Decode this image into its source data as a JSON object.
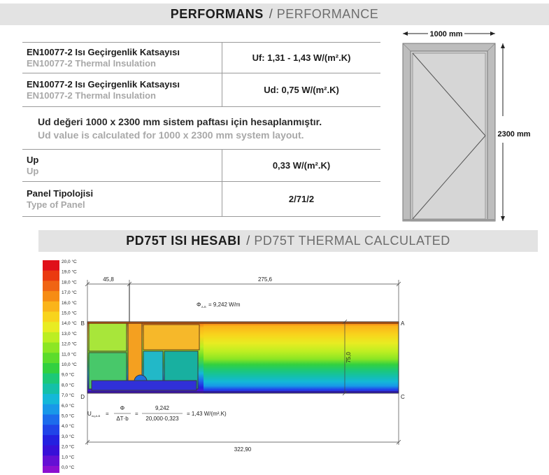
{
  "performance_header": {
    "tr": "PERFORMANS",
    "sep": "/",
    "en": "PERFORMANCE"
  },
  "spec_rows": [
    {
      "label_tr": "EN10077-2 Isı Geçirgenlik Katsayısı",
      "label_en": "EN10077-2 Thermal Insulation",
      "value": "Uf: 1,31 - 1,43 W/(m².K)"
    },
    {
      "label_tr": "EN10077-2 Isı Geçirgenlik Katsayısı",
      "label_en": "EN10077-2 Thermal Insulation",
      "value": "Ud: 0,75 W/(m².K)"
    },
    {
      "label_tr": "Up",
      "label_en": "Up",
      "value": "0,33 W/(m².K)"
    },
    {
      "label_tr": "Panel Tipolojisi",
      "label_en": "Type of Panel",
      "value": "2/71/2"
    }
  ],
  "note": {
    "tr": "Ud değeri  1000 x 2300 mm sistem paftası için hesaplanmıştır.",
    "en": "Ud value is calculated for 1000 x 2300 mm system layout."
  },
  "door_drawing": {
    "width_label": "1000 mm",
    "height_label": "2300 mm"
  },
  "thermal_header": {
    "tr": "PD75T ISI HESABI",
    "sep": "/",
    "en": "PD75T THERMAL CALCULATED"
  },
  "thermal_scale": {
    "labels": [
      "20,0 °C",
      "19,0 °C",
      "18,0 °C",
      "17,0 °C",
      "16,0 °C",
      "15,0 °C",
      "14,0 °C",
      "13,0 °C",
      "12,0 °C",
      "11,0 °C",
      "10,0 °C",
      "9,0 °C",
      "8,0 °C",
      "7,0 °C",
      "6,0 °C",
      "5,0 °C",
      "4,0 °C",
      "3,0 °C",
      "2,0 °C",
      "1,0 °C",
      "0,0 °C"
    ],
    "colors": [
      "#e0101a",
      "#ea3a10",
      "#f06414",
      "#f68c14",
      "#fab41a",
      "#f8d41c",
      "#e8ec22",
      "#bcee22",
      "#8ce624",
      "#5cdc2c",
      "#32d040",
      "#1cc878",
      "#14c0a8",
      "#14b8d8",
      "#1898e8",
      "#1c6cec",
      "#2044e8",
      "#2420e0",
      "#3810d8",
      "#6410d4",
      "#8c10d0"
    ]
  },
  "thermal_drawing": {
    "dim_left": "45,8",
    "dim_right": "275,6",
    "dim_total": "322,90",
    "dim_height": "75,0",
    "flux": "Φ",
    "flux_sub": "A-B",
    "flux_value": "= 9,242 W/m",
    "point_a": "A",
    "point_b": "B",
    "point_c": "C",
    "point_d": "D",
    "formula_u": "U",
    "formula_u_sub": "eq,A-B",
    "formula_eq": "=",
    "formula_num1": "Φ",
    "formula_den1": "ΔT·b",
    "formula_num2": "9,242",
    "formula_den2": "20,000·0,323",
    "formula_result": "= 1,43 W/(m².K)"
  }
}
